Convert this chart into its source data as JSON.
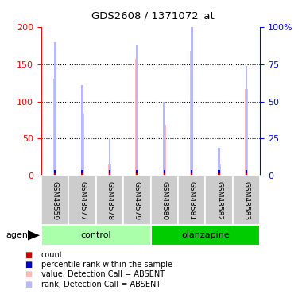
{
  "title": "GDS2608 / 1371072_at",
  "samples": [
    "GSM48559",
    "GSM48577",
    "GSM48578",
    "GSM48579",
    "GSM48580",
    "GSM48581",
    "GSM48582",
    "GSM48583"
  ],
  "values_absent": [
    130,
    83,
    15,
    157,
    69,
    168,
    15,
    117
  ],
  "ranks_absent": [
    90,
    61,
    25,
    88,
    50,
    100,
    19,
    74
  ],
  "ylim_left": [
    0,
    200
  ],
  "ylim_right": [
    0,
    100
  ],
  "yticks_left": [
    0,
    50,
    100,
    150,
    200
  ],
  "yticks_right": [
    0,
    25,
    50,
    75,
    100
  ],
  "ytick_labels_right": [
    "0",
    "25",
    "50",
    "75",
    "100%"
  ],
  "bar_color_value_absent": "#FFB8B8",
  "bar_color_rank_absent": "#B8B8FF",
  "bar_color_count": "#CC0000",
  "bar_color_rank_solid": "#0000CC",
  "control_bg_light": "#AAFFAA",
  "control_bg_dark": "#00DD00",
  "olanzapine_bg_dark": "#00CC00",
  "sample_bg": "#CCCCCC",
  "white": "#FFFFFF",
  "group_label_control": "control",
  "group_label_olanzapine": "olanzapine",
  "agent_label": "agent",
  "legend_items": [
    {
      "label": "count",
      "color": "#CC0000"
    },
    {
      "label": "percentile rank within the sample",
      "color": "#0000CC"
    },
    {
      "label": "value, Detection Call = ABSENT",
      "color": "#FFB8B8"
    },
    {
      "label": "rank, Detection Call = ABSENT",
      "color": "#B8B8FF"
    }
  ],
  "figsize": [
    3.85,
    3.75
  ],
  "dpi": 100
}
